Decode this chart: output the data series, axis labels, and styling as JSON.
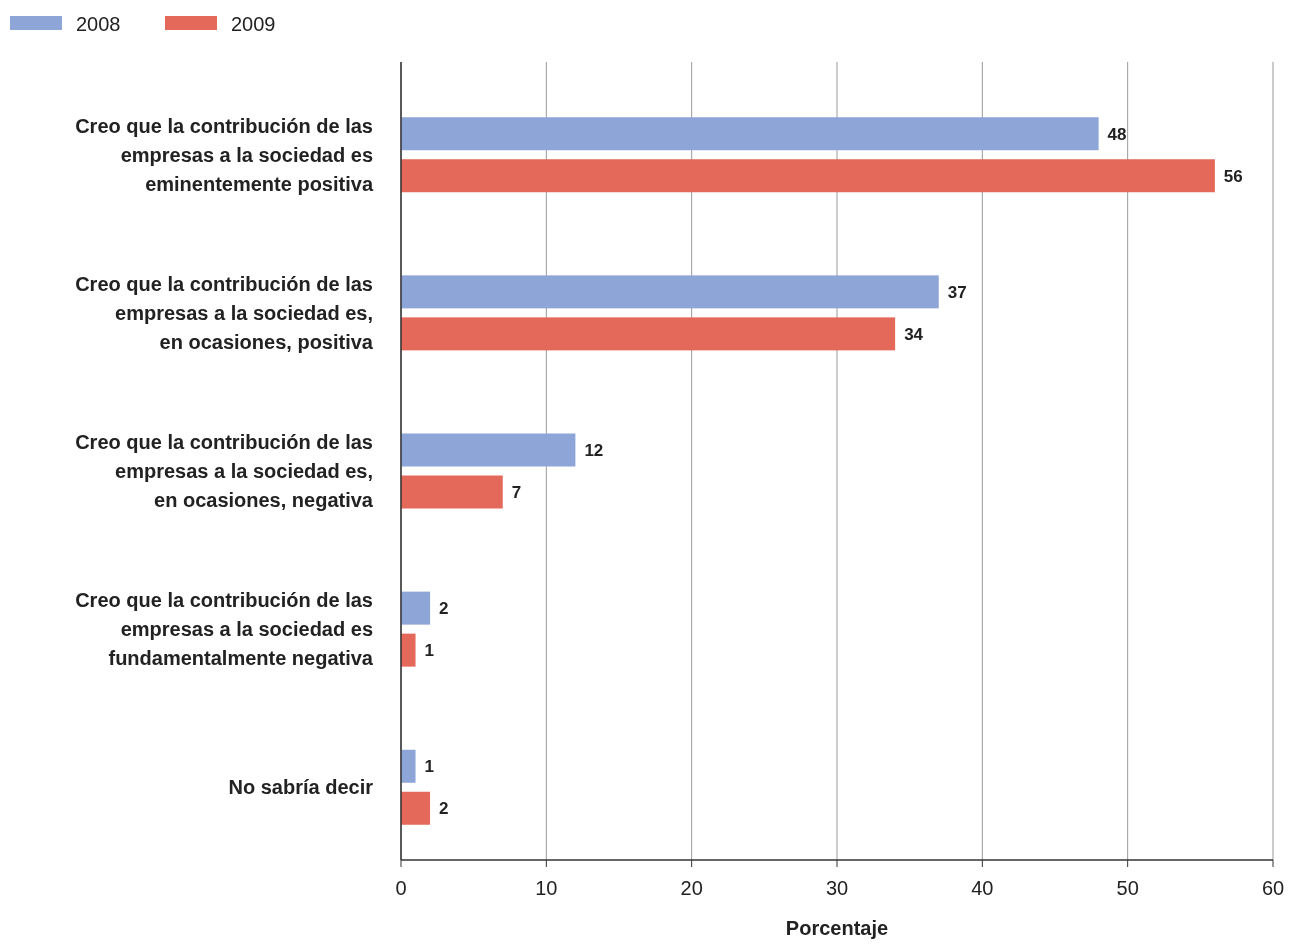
{
  "chart_data": {
    "type": "bar",
    "orientation": "horizontal",
    "xlabel": "Porcentaje",
    "categories": [
      "Creo que la contribución de las\nempresas a la sociedad es\neminentemente positiva",
      "Creo que la contribución de las\nempresas a la sociedad es,\nen ocasiones, positiva",
      "Creo que la contribución de las\nempresas a la sociedad es,\nen ocasiones, negativa",
      "Creo que la contribución de las\nempresas a la sociedad es\nfundamentalmente negativa",
      "No sabría decir"
    ],
    "series": [
      {
        "name": "2008",
        "color": "#8ea5d8",
        "values": [
          48,
          37,
          12,
          2,
          1
        ]
      },
      {
        "name": "2009",
        "color": "#e5695a",
        "values": [
          56,
          34,
          7,
          1,
          2
        ]
      }
    ],
    "xlim": [
      0,
      60
    ],
    "xticks": [
      0,
      10,
      20,
      30,
      40,
      50,
      60
    ],
    "grid": "x",
    "legend": "top left",
    "data_labels": true
  }
}
